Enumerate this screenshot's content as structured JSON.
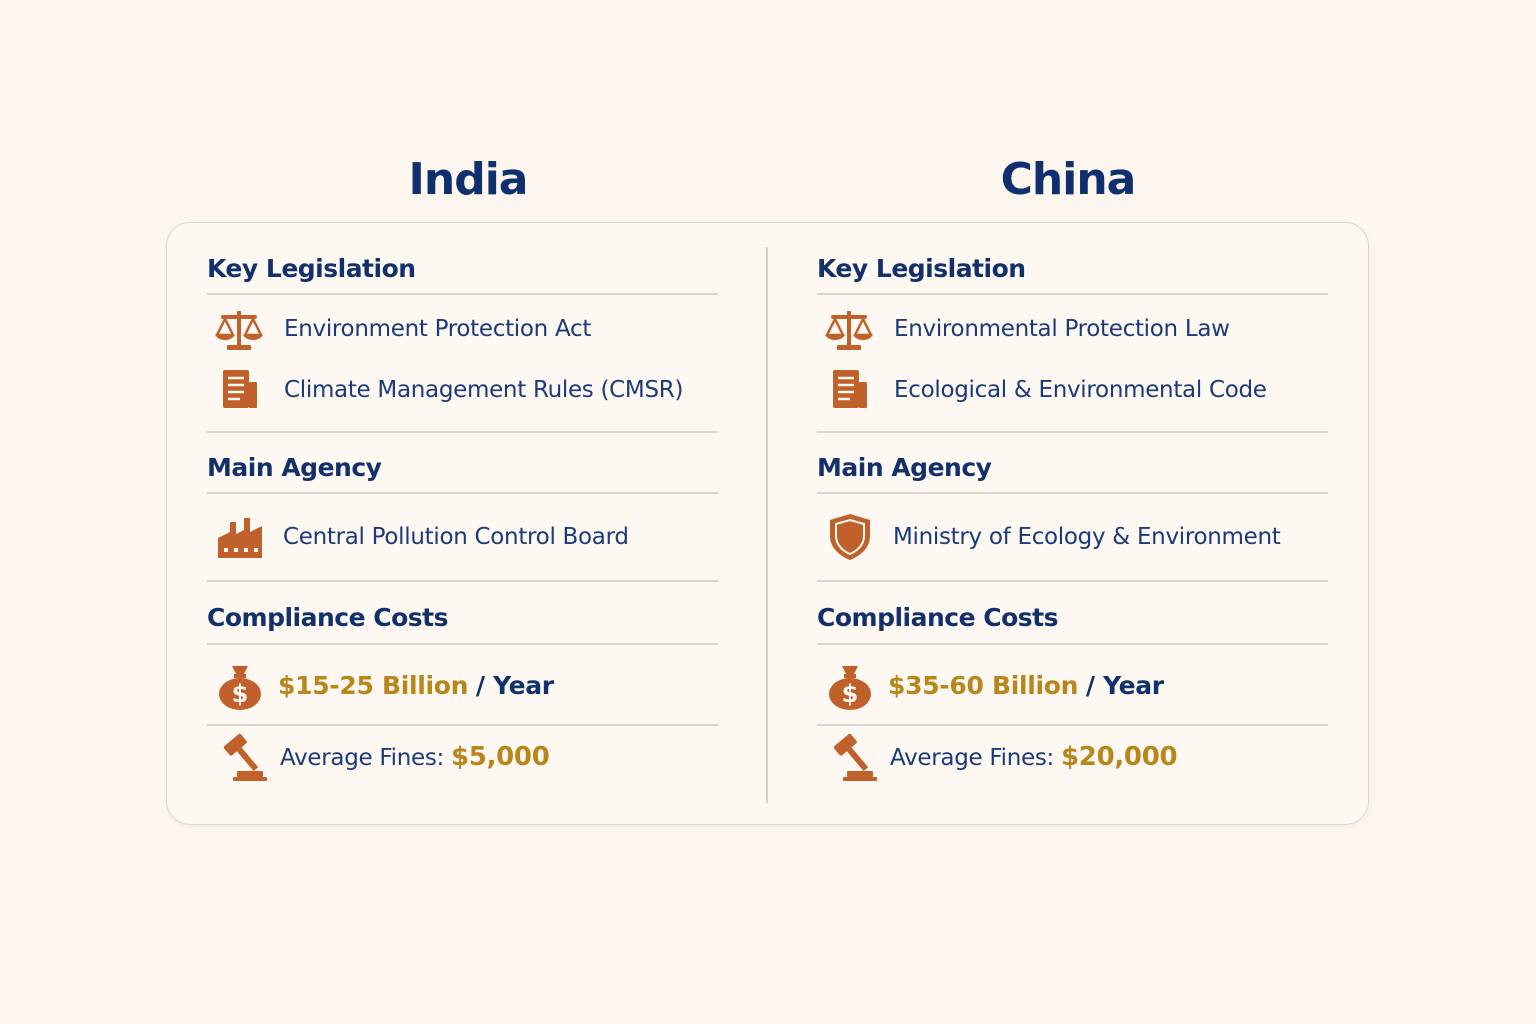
{
  "columns": [
    {
      "title": "India",
      "legislation_heading": "Key Legislation",
      "legislation": [
        "Environment Protection Act",
        "Climate Management Rules (CMSR)"
      ],
      "agency_heading": "Main Agency",
      "agency": "Central Pollution Control Board",
      "costs_heading": "Compliance Costs",
      "cost_amount": "$15-25 Billion",
      "cost_unit": "/ Year",
      "fines_label": "Average Fines:",
      "fines_amount": "$5,000"
    },
    {
      "title": "China",
      "legislation_heading": "Key Legislation",
      "legislation": [
        "Environmental Protection Law",
        "Ecological & Environmental Code"
      ],
      "agency_heading": "Main Agency",
      "agency": "Ministry of Ecology & Environment",
      "costs_heading": "Compliance Costs",
      "cost_amount": "$35-60 Billion",
      "cost_unit": "/ Year",
      "fines_label": "Average Fines:",
      "fines_amount": "$20,000"
    }
  ]
}
